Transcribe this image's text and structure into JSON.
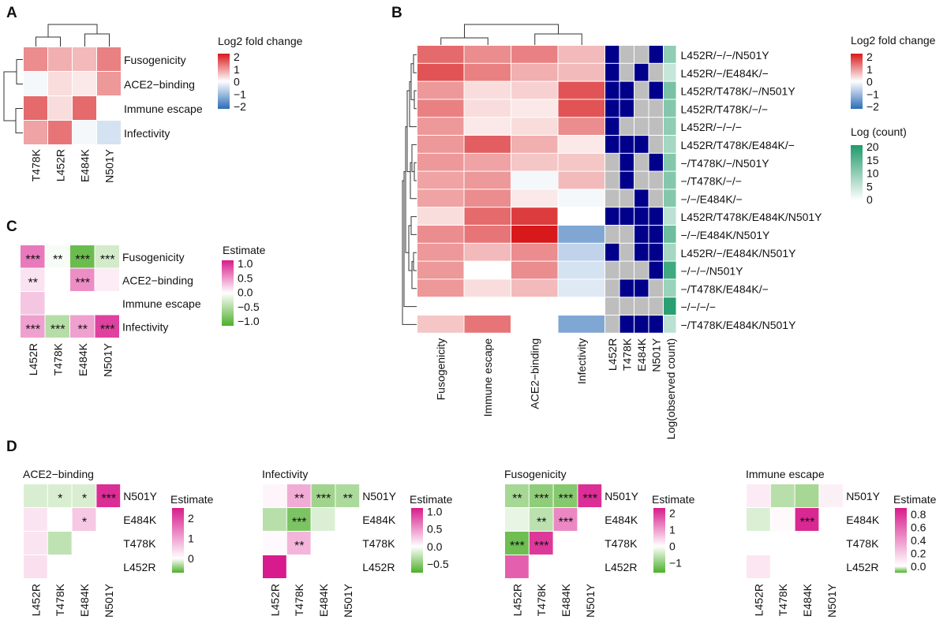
{
  "figure": {
    "panels": {
      "A": {
        "letter": "A",
        "legend_title": "Log2 fold change"
      },
      "B": {
        "letter": "B",
        "legend_title_1": "Log2 fold change",
        "legend_title_2": "Log (count)"
      },
      "C": {
        "letter": "C",
        "legend_title": "Estimate"
      },
      "D": {
        "letter": "D"
      }
    }
  },
  "chart_data": [
    {
      "panel": "A",
      "type": "heatmap",
      "title": "",
      "columns": [
        "T478K",
        "L452R",
        "E484K",
        "N501Y"
      ],
      "rows": [
        "Fusogenicity",
        "ACE2−binding",
        "Immune escape",
        "Infectivity"
      ],
      "values": [
        [
          1.0,
          0.7,
          0.6,
          1.1
        ],
        [
          -0.1,
          0.3,
          0.2,
          0.9
        ],
        [
          1.3,
          0.3,
          1.3,
          0.0
        ],
        [
          0.8,
          1.2,
          -0.1,
          -0.4
        ]
      ],
      "color_scale": {
        "label": "Log2 fold change",
        "ticks": [
          "2",
          "1",
          "0",
          "−1",
          "−2"
        ],
        "range": [
          -2,
          2
        ],
        "low": "#3a78c0",
        "mid": "#ffffff",
        "high": "#d62020"
      },
      "dendrograms": {
        "columns": true,
        "rows": true
      }
    },
    {
      "panel": "B",
      "type": "heatmap",
      "columns": [
        "Fusogenicity",
        "Immune escape",
        "ACE2−binding",
        "Infectivity"
      ],
      "rows": [
        "L452R/−/−/N501Y",
        "L452R/−/E484K/−",
        "L452R/T478K/−/N501Y",
        "L452R/T478K/−/−",
        "L452R/−/−/−",
        "L452R/T478K/E484K/−",
        "−/T478K/−/N501Y",
        "−/T478K/−/−",
        "−/−/E484K/−",
        "L452R/T478K/E484K/N501Y",
        "−/−/E484K/N501Y",
        "L452R/−/E484K/N501Y",
        "−/−/−/N501Y",
        "−/T478K/E484K/−",
        "−/−/−/−",
        "−/T478K/E484K/N501Y"
      ],
      "values": [
        [
          1.3,
          1.0,
          1.1,
          0.6
        ],
        [
          1.5,
          1.1,
          0.7,
          0.6
        ],
        [
          0.9,
          0.3,
          0.4,
          1.5
        ],
        [
          1.1,
          0.3,
          0.2,
          1.5
        ],
        [
          0.9,
          0.2,
          0.3,
          1.0
        ],
        [
          0.9,
          1.4,
          0.7,
          0.2
        ],
        [
          0.9,
          0.8,
          0.5,
          0.5
        ],
        [
          0.8,
          0.9,
          -0.1,
          0.6
        ],
        [
          0.8,
          1.0,
          0.2,
          -0.1
        ],
        [
          0.3,
          1.3,
          1.7,
          0.0
        ],
        [
          1.0,
          1.2,
          2.0,
          -1.2
        ],
        [
          0.9,
          0.6,
          1.0,
          -0.6
        ],
        [
          0.9,
          0.0,
          1.0,
          -0.4
        ],
        [
          0.9,
          0.3,
          0.6,
          -0.3
        ],
        [
          0.0,
          0.0,
          0.0,
          0.0
        ],
        [
          0.5,
          1.2,
          0.0,
          -1.2
        ]
      ],
      "mutation_columns": [
        "L452R",
        "T478K",
        "E484K",
        "N501Y"
      ],
      "mutation_presence": [
        [
          1,
          0,
          0,
          1
        ],
        [
          1,
          0,
          1,
          0
        ],
        [
          1,
          1,
          0,
          1
        ],
        [
          1,
          1,
          0,
          0
        ],
        [
          1,
          0,
          0,
          0
        ],
        [
          1,
          1,
          1,
          0
        ],
        [
          0,
          1,
          0,
          1
        ],
        [
          0,
          1,
          0,
          0
        ],
        [
          0,
          0,
          1,
          0
        ],
        [
          1,
          1,
          1,
          1
        ],
        [
          0,
          0,
          1,
          1
        ],
        [
          1,
          0,
          1,
          1
        ],
        [
          0,
          0,
          0,
          1
        ],
        [
          0,
          1,
          1,
          0
        ],
        [
          0,
          0,
          0,
          0
        ],
        [
          0,
          1,
          1,
          1
        ]
      ],
      "count_column": "Log(observed count)",
      "log_count": [
        10,
        5,
        12,
        11,
        10,
        8,
        11,
        11,
        11,
        6,
        13,
        8,
        17,
        9,
        19,
        6
      ],
      "present_color": "#00008b",
      "absent_color": "#bebebe",
      "color_scale": {
        "label": "Log2 fold change",
        "ticks": [
          "2",
          "1",
          "0",
          "−1",
          "−2"
        ],
        "range": [
          -2,
          2
        ]
      },
      "count_scale": {
        "label": "Log (count)",
        "ticks": [
          "20",
          "15",
          "10",
          "5",
          "0"
        ],
        "range": [
          0,
          20
        ],
        "low": "#ffffff",
        "high": "#1f9a6a"
      },
      "dendrograms": {
        "columns": true,
        "rows": true
      }
    },
    {
      "panel": "C",
      "type": "heatmap",
      "columns": [
        "L452R",
        "T478K",
        "E484K",
        "N501Y"
      ],
      "rows": [
        "Fusogenicity",
        "ACE2−binding",
        "Immune escape",
        "Infectivity"
      ],
      "values": [
        [
          0.7,
          -0.05,
          -1.0,
          -0.3
        ],
        [
          0.15,
          0.0,
          0.6,
          0.1
        ],
        [
          0.3,
          0.0,
          0.0,
          0.0
        ],
        [
          0.5,
          -0.5,
          0.5,
          1.0
        ]
      ],
      "significance": [
        [
          "***",
          "**",
          "***",
          "***"
        ],
        [
          "**",
          "",
          "***",
          ""
        ],
        [
          "",
          "",
          "",
          ""
        ],
        [
          "***",
          "***",
          "**",
          "***"
        ]
      ],
      "color_scale": {
        "label": "Estimate",
        "ticks": [
          "1.0",
          "0.5",
          "0.0",
          "−0.5",
          "−1.0"
        ],
        "range": [
          -1.2,
          1.2
        ],
        "low": "#4daf2a",
        "mid": "#ffffff",
        "high": "#d81b8c"
      }
    },
    {
      "panel": "D",
      "type": "heatmap",
      "subplots": [
        {
          "title": "ACE2−binding",
          "xcolumns": [
            "L452R",
            "T478K",
            "E484K",
            "N501Y"
          ],
          "yrows": [
            "N501Y",
            "E484K",
            "T478K",
            "L452R"
          ],
          "values": [
            [
              -0.15,
              -0.15,
              -0.15,
              2.3
            ],
            [
              0.3,
              null,
              0.6,
              null
            ],
            [
              0.3,
              -0.25,
              null,
              null
            ],
            [
              0.35,
              null,
              null,
              null
            ]
          ],
          "significance": [
            [
              "",
              "*",
              "*",
              "***"
            ],
            [
              "",
              "",
              "*",
              ""
            ],
            [
              "",
              "",
              "",
              ""
            ],
            [
              "",
              "",
              "",
              ""
            ]
          ],
          "color_scale": {
            "label": "Estimate",
            "ticks": [
              "2",
              "1",
              "0"
            ],
            "range": [
              -0.7,
              2.5
            ]
          }
        },
        {
          "title": "Infectivity",
          "xcolumns": [
            "L452R",
            "T478K",
            "E484K",
            "N501Y"
          ],
          "yrows": [
            "N501Y",
            "E484K",
            "T478K",
            "L452R"
          ],
          "values": [
            [
              0.05,
              0.4,
              -0.4,
              -0.35
            ],
            [
              -0.3,
              -0.55,
              -0.15,
              null
            ],
            [
              0.03,
              0.35,
              null,
              null
            ],
            [
              1.1,
              null,
              null,
              null
            ]
          ],
          "significance": [
            [
              "",
              "**",
              "***",
              "**"
            ],
            [
              "",
              "***",
              "",
              ""
            ],
            [
              "",
              "**",
              "",
              ""
            ],
            [
              "",
              "",
              "",
              ""
            ]
          ],
          "color_scale": {
            "label": "Estimate",
            "ticks": [
              "1.0",
              "0.5",
              "0.0",
              "−0.5"
            ],
            "range": [
              -0.75,
              1.1
            ]
          }
        },
        {
          "title": "Fusogenicity",
          "xcolumns": [
            "L452R",
            "T478K",
            "E484K",
            "N501Y"
          ],
          "yrows": [
            "N501Y",
            "E484K",
            "T478K",
            "L452R"
          ],
          "values": [
            [
              -0.8,
              -1.0,
              -1.1,
              2.1
            ],
            [
              -0.2,
              -0.6,
              1.2,
              null
            ],
            [
              -1.3,
              2.0,
              null,
              null
            ],
            [
              1.6,
              null,
              null,
              null
            ]
          ],
          "significance": [
            [
              "**",
              "***",
              "***",
              "***"
            ],
            [
              "",
              "**",
              "***",
              ""
            ],
            [
              "***",
              "***",
              "",
              ""
            ],
            [
              "",
              "",
              "",
              ""
            ]
          ],
          "color_scale": {
            "label": "Estimate",
            "ticks": [
              "2",
              "1",
              "0",
              "−1"
            ],
            "range": [
              -1.6,
              2.3
            ]
          }
        },
        {
          "title": "Immune escape",
          "xcolumns": [
            "L452R",
            "T478K",
            "E484K",
            "N501Y"
          ],
          "yrows": [
            "N501Y",
            "E484K",
            "T478K",
            "L452R"
          ],
          "values": [
            [
              0.08,
              -0.04,
              -0.05,
              0.06
            ],
            [
              -0.02,
              0.02,
              0.85,
              null
            ],
            [
              0.0,
              0.0,
              null,
              null
            ],
            [
              0.1,
              null,
              null,
              null
            ]
          ],
          "significance": [
            [
              "",
              "",
              "",
              ""
            ],
            [
              "",
              "",
              "***",
              ""
            ],
            [
              "",
              "",
              "",
              ""
            ],
            [
              "",
              "",
              "",
              ""
            ]
          ],
          "color_scale": {
            "label": "Estimate",
            "ticks": [
              "0.8",
              "0.6",
              "0.4",
              "0.2",
              "0.0"
            ],
            "range": [
              -0.1,
              0.9
            ]
          }
        }
      ]
    }
  ]
}
